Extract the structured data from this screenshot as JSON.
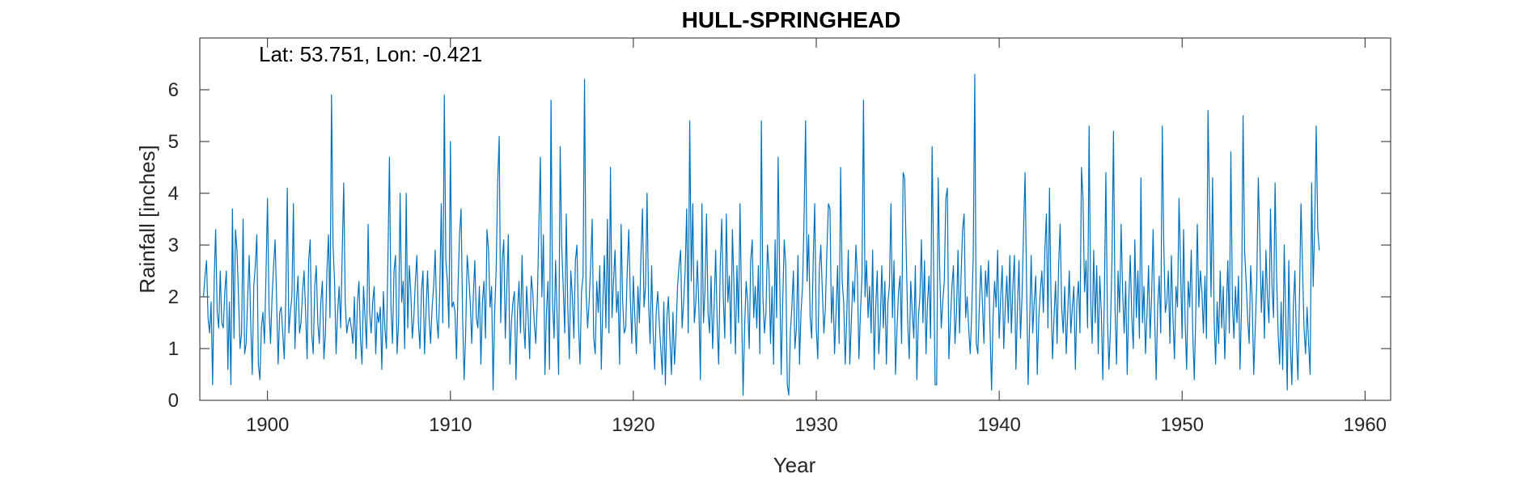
{
  "chart_data": {
    "type": "line",
    "title": "HULL-SPRINGHEAD",
    "annotation": "Lat: 53.751, Lon: -0.421",
    "xlabel": "Year",
    "ylabel": "Rainfall [inches]",
    "xlim": [
      1896.3,
      1961.4
    ],
    "ylim": [
      0,
      7
    ],
    "xticks": [
      1900,
      1910,
      1920,
      1930,
      1940,
      1950,
      1960
    ],
    "yticks": [
      0,
      1,
      2,
      3,
      4,
      5,
      6
    ],
    "grid": false,
    "series": [
      {
        "color": "#0072BD",
        "x_start": 1896.5,
        "x_step": 0.08333,
        "values": [
          2.0,
          2.4,
          2.7,
          1.6,
          1.3,
          1.9,
          0.3,
          2.3,
          3.3,
          1.7,
          1.4,
          2.5,
          1.5,
          1.4,
          2.1,
          2.5,
          0.6,
          1.9,
          0.3,
          3.7,
          1.2,
          3.3,
          2.9,
          2.0,
          1.0,
          1.3,
          3.5,
          0.9,
          1.1,
          2.0,
          2.8,
          1.5,
          0.5,
          2.2,
          2.6,
          3.2,
          0.7,
          0.4,
          1.4,
          1.7,
          1.1,
          2.4,
          3.9,
          1.8,
          1.1,
          2.0,
          2.6,
          3.1,
          1.9,
          0.7,
          1.7,
          1.8,
          1.3,
          0.8,
          2.0,
          4.1,
          1.3,
          1.7,
          2.0,
          3.8,
          1.0,
          1.9,
          2.4,
          1.3,
          1.5,
          2.1,
          2.5,
          1.7,
          0.8,
          2.7,
          3.1,
          1.3,
          0.9,
          2.2,
          2.6,
          1.5,
          1.1,
          1.9,
          2.3,
          0.8,
          1.3,
          2.5,
          3.2,
          1.6,
          5.9,
          3.0,
          2.3,
          0.9,
          1.7,
          2.2,
          1.4,
          2.8,
          4.2,
          1.9,
          1.3,
          1.5,
          1.6,
          1.4,
          1.1,
          2.0,
          0.8,
          1.9,
          2.3,
          1.2,
          0.7,
          2.2,
          1.6,
          1.0,
          3.4,
          1.7,
          1.3,
          1.9,
          2.2,
          0.9,
          1.7,
          1.5,
          1.8,
          0.6,
          2.1,
          1.4,
          1.0,
          2.7,
          4.7,
          1.8,
          1.1,
          2.5,
          2.8,
          0.9,
          1.5,
          4.0,
          1.9,
          2.3,
          1.0,
          4.0,
          1.4,
          2.6,
          2.1,
          1.2,
          1.6,
          2.3,
          2.8,
          1.5,
          1.0,
          2.1,
          2.5,
          0.9,
          1.7,
          2.5,
          1.6,
          1.1,
          1.8,
          2.2,
          2.9,
          1.6,
          1.2,
          2.1,
          3.8,
          1.5,
          5.9,
          2.7,
          2.3,
          1.4,
          5.0,
          1.8,
          1.9,
          1.7,
          0.8,
          2.2,
          3.2,
          3.7,
          1.6,
          0.4,
          1.3,
          2.8,
          2.4,
          1.9,
          1.1,
          2.0,
          2.7,
          1.6,
          1.4,
          2.2,
          0.7,
          1.9,
          2.3,
          1.2,
          3.3,
          2.9,
          1.8,
          2.2,
          0.2,
          1.7,
          2.5,
          4.2,
          5.1,
          1.5,
          2.7,
          3.1,
          1.2,
          2.2,
          3.2,
          0.7,
          1.5,
          1.9,
          2.1,
          0.4,
          1.7,
          2.3,
          1.3,
          2.8,
          1.5,
          1.0,
          2.2,
          1.6,
          0.8,
          2.4,
          2.1,
          1.5,
          1.1,
          1.9,
          3.3,
          4.7,
          2.0,
          3.2,
          0.5,
          1.7,
          2.3,
          0.6,
          5.8,
          1.9,
          1.2,
          2.7,
          1.6,
          0.5,
          4.9,
          3.0,
          2.2,
          1.3,
          3.6,
          1.8,
          0.8,
          2.5,
          2.0,
          1.2,
          2.7,
          3.0,
          1.5,
          0.7,
          2.1,
          2.4,
          6.2,
          2.1,
          1.4,
          1.9,
          2.6,
          3.5,
          1.2,
          0.9,
          2.3,
          1.7,
          2.6,
          0.6,
          1.9,
          2.8,
          1.4,
          3.5,
          1.3,
          4.5,
          1.6,
          2.3,
          2.9,
          1.7,
          2.1,
          0.7,
          3.4,
          1.9,
          1.3,
          1.4,
          2.5,
          3.3,
          2.0,
          1.1,
          2.4,
          1.6,
          0.9,
          2.2,
          1.5,
          2.8,
          3.7,
          1.8,
          2.2,
          4.0,
          1.9,
          1.1,
          2.6,
          1.3,
          0.6,
          1.7,
          2.1,
          1.5,
          1.0,
          0.5,
          1.9,
          0.3,
          1.6,
          2.0,
          1.2,
          0.5,
          1.7,
          0.7,
          1.3,
          2.2,
          2.6,
          2.9,
          1.4,
          1.9,
          2.5,
          3.7,
          1.3,
          5.4,
          2.3,
          3.8,
          1.5,
          1.9,
          2.7,
          1.8,
          0.4,
          3.8,
          1.5,
          2.1,
          3.6,
          1.7,
          1.3,
          2.4,
          1.0,
          1.8,
          2.9,
          1.5,
          0.7,
          2.6,
          3.5,
          2.0,
          1.2,
          3.6,
          1.9,
          2.4,
          1.1,
          3.3,
          2.2,
          0.9,
          2.6,
          1.5,
          3.8,
          1.8,
          0.1,
          1.4,
          2.3,
          1.9,
          1.0,
          2.7,
          3.1,
          1.6,
          2.2,
          1.4,
          2.6,
          0.9,
          5.4,
          2.0,
          1.3,
          1.7,
          3.0,
          2.5,
          1.1,
          2.2,
          0.7,
          3.1,
          1.6,
          4.7,
          2.4,
          0.5,
          1.9,
          3.1,
          2.6,
          0.3,
          0.1,
          1.3,
          1.8,
          2.5,
          1.0,
          1.4,
          2.8,
          0.7,
          1.7,
          2.2,
          3.5,
          5.4,
          2.3,
          3.2,
          1.6,
          1.2,
          2.7,
          3.8,
          1.4,
          0.8,
          2.5,
          3.0,
          2.1,
          1.3,
          1.8,
          2.9,
          3.8,
          3.7,
          1.5,
          2.2,
          0.9,
          1.7,
          2.6,
          1.1,
          4.5,
          2.3,
          1.9,
          0.7,
          1.6,
          2.9,
          0.7,
          1.5,
          2.3,
          1.9,
          3.0,
          2.4,
          0.8,
          1.7,
          2.4,
          5.8,
          2.0,
          2.7,
          1.6,
          2.2,
          1.3,
          2.9,
          0.6,
          1.8,
          2.5,
          0.9,
          1.5,
          2.6,
          1.4,
          2.3,
          0.7,
          1.9,
          2.2,
          3.8,
          1.6,
          2.7,
          0.5,
          1.4,
          2.1,
          2.4,
          1.1,
          4.4,
          4.3,
          2.9,
          1.5,
          0.8,
          2.3,
          1.7,
          1.2,
          2.6,
          0.4,
          1.6,
          2.0,
          3.1,
          1.5,
          2.7,
          0.9,
          1.9,
          2.4,
          1.2,
          4.9,
          2.6,
          0.3,
          0.3,
          4.3,
          2.5,
          1.4,
          1.9,
          2.3,
          3.9,
          4.1,
          0.8,
          1.5,
          2.2,
          2.6,
          1.1,
          1.7,
          2.9,
          1.3,
          2.4,
          3.3,
          3.6,
          1.6,
          2.0,
          1.4,
          0.9,
          1.7,
          2.8,
          6.3,
          1.1,
          0.9,
          1.8,
          2.6,
          1.9,
          1.1,
          2.5,
          2.0,
          2.7,
          1.4,
          0.2,
          1.6,
          2.3,
          1.8,
          2.9,
          1.2,
          2.0,
          2.6,
          1.0,
          1.8,
          2.4,
          1.5,
          2.8,
          1.3,
          2.2,
          2.8,
          0.6,
          1.8,
          2.7,
          1.2,
          2.0,
          3.3,
          4.4,
          2.2,
          0.3,
          1.5,
          2.8,
          1.3,
          1.9,
          2.4,
          0.5,
          1.6,
          2.1,
          2.5,
          1.7,
          2.9,
          3.6,
          1.4,
          4.1,
          2.0,
          0.8,
          1.6,
          2.3,
          1.1,
          2.6,
          3.4,
          1.8,
          1.3,
          2.2,
          0.9,
          1.7,
          2.5,
          1.3,
          1.8,
          2.2,
          0.6,
          1.9,
          2.3,
          1.3,
          4.5,
          3.9,
          2.1,
          2.7,
          1.4,
          5.3,
          2.0,
          1.1,
          2.9,
          1.5,
          2.6,
          0.9,
          2.4,
          1.7,
          0.4,
          2.0,
          4.4,
          1.6,
          0.6,
          1.4,
          2.7,
          5.2,
          1.8,
          0.7,
          2.5,
          1.7,
          3.4,
          2.1,
          1.3,
          2.3,
          0.5,
          1.9,
          2.8,
          1.6,
          1.0,
          3.1,
          1.6,
          2.5,
          1.2,
          4.3,
          1.5,
          2.2,
          0.9,
          1.7,
          2.6,
          1.2,
          2.0,
          3.3,
          1.6,
          0.4,
          1.8,
          2.4,
          1.3,
          5.3,
          3.0,
          1.7,
          1.9,
          2.5,
          1.1,
          2.8,
          1.6,
          0.8,
          2.2,
          1.8,
          3.9,
          2.6,
          1.2,
          3.3,
          1.5,
          0.6,
          2.3,
          1.8,
          2.9,
          1.3,
          0.4,
          1.7,
          3.4,
          1.8,
          2.5,
          2.1,
          1.3,
          2.4,
          1.2,
          5.6,
          3.8,
          2.0,
          4.3,
          1.6,
          0.7,
          1.9,
          1.1,
          2.5,
          1.4,
          2.2,
          0.8,
          1.7,
          2.7,
          1.3,
          4.8,
          1.9,
          1.2,
          2.2,
          1.5,
          2.4,
          0.6,
          1.8,
          5.5,
          2.9,
          2.3,
          1.6,
          1.1,
          2.6,
          1.9,
          0.5,
          1.4,
          2.3,
          4.3,
          3.1,
          1.7,
          2.5,
          1.2,
          2.9,
          2.0,
          1.5,
          3.7,
          2.2,
          1.6,
          4.2,
          2.4,
          1.3,
          0.7,
          1.9,
          0.6,
          3.0,
          1.6,
          0.2,
          2.7,
          1.1,
          0.3,
          1.8,
          2.5,
          1.2,
          0.4,
          2.0,
          3.8,
          2.6,
          1.4,
          0.9,
          1.8,
          1.1,
          0.5,
          4.2,
          2.2,
          3.4,
          5.3,
          3.3,
          2.9
        ]
      }
    ]
  }
}
